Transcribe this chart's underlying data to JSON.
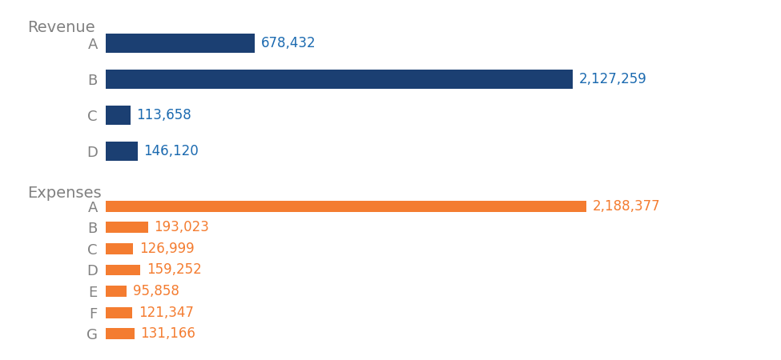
{
  "revenue_labels": [
    "A",
    "B",
    "C",
    "D"
  ],
  "revenue_values": [
    678432,
    2127259,
    113658,
    146120
  ],
  "revenue_color": "#1B3F72",
  "revenue_text_color": "#1B6AB0",
  "expense_labels": [
    "A",
    "B",
    "C",
    "D",
    "E",
    "F",
    "G"
  ],
  "expense_values": [
    2188377,
    193023,
    126999,
    159252,
    95858,
    121347,
    131166
  ],
  "expense_color": "#F47C30",
  "expense_text_color": "#F47C30",
  "section_label_color": "#808080",
  "background_color": "#FFFFFF",
  "revenue_section_title": "Revenue",
  "expense_section_title": "Expenses",
  "bar_height": 0.52,
  "label_fontsize": 13,
  "value_fontsize": 12,
  "section_title_fontsize": 14
}
